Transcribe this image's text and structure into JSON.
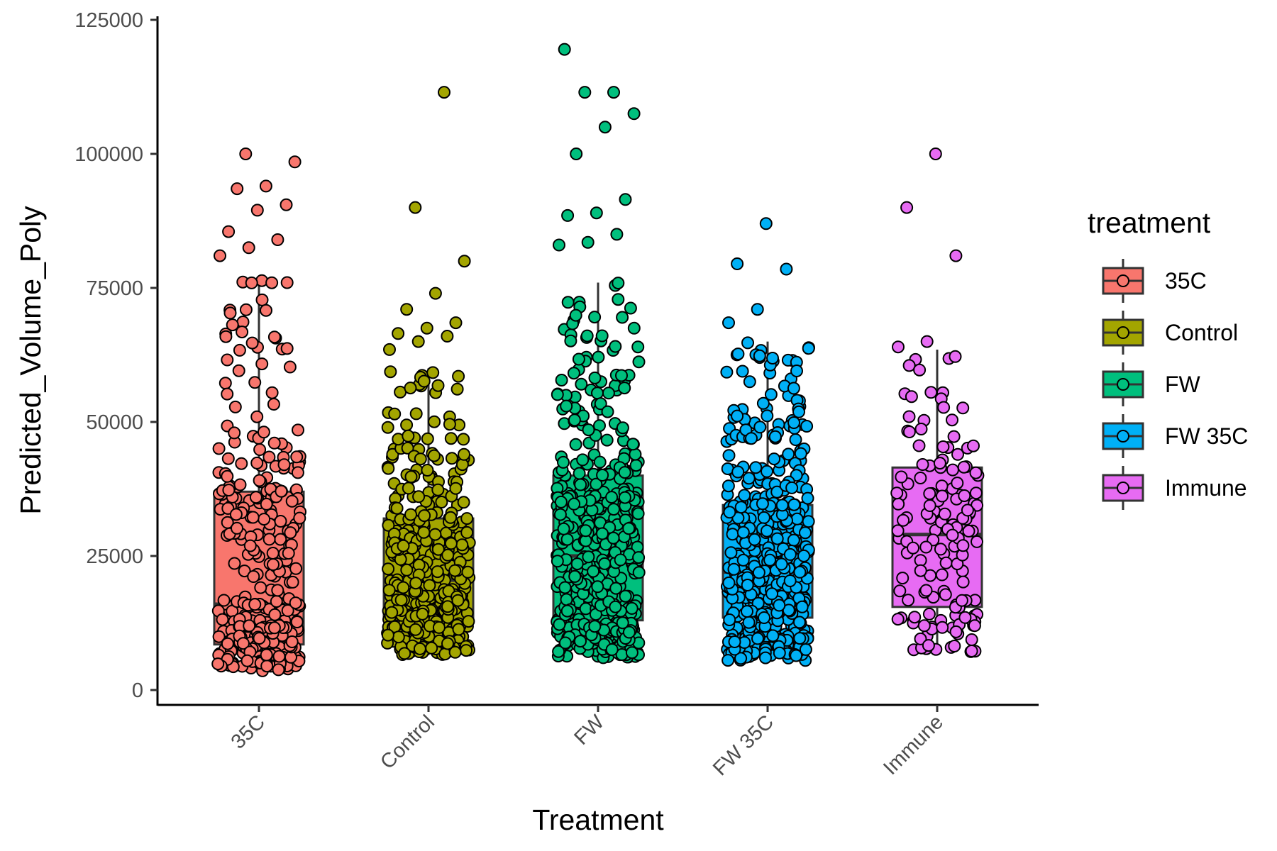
{
  "chart_data": {
    "type": "box",
    "title": "",
    "xlabel": "Treatment",
    "ylabel": "Predicted_Volume_Poly",
    "ylim": [
      -2000,
      127000
    ],
    "y_ticks": [
      "0",
      "25000",
      "50000",
      "75000",
      "100000",
      "125000"
    ],
    "y_tick_values": [
      0,
      25000,
      50000,
      75000,
      100000,
      125000
    ],
    "categories": [
      "35C",
      "Control",
      "FW",
      "FW 35C",
      "Immune"
    ],
    "colors": [
      "#F8766D",
      "#A3A500",
      "#00BF7D",
      "#00B0F6",
      "#E76BF3"
    ],
    "legend": {
      "title": "treatment",
      "placement": "right",
      "entries": [
        "35C",
        "Control",
        "FW",
        "FW 35C",
        "Immune"
      ]
    },
    "grid": false,
    "series": [
      {
        "category": "35C",
        "box": {
          "q1": 8500,
          "median": 16000,
          "q3": 37000,
          "whisker_low": 3500,
          "whisker_high": 77000
        },
        "outliers": [
          81000,
          82500,
          84000,
          85500,
          89500,
          90500,
          93500,
          94000,
          98500,
          100000
        ],
        "n_points": 320,
        "spread": [
          3500,
          77000
        ]
      },
      {
        "category": "Control",
        "box": {
          "q1": 13000,
          "median": 20500,
          "q3": 32000,
          "whisker_low": 6500,
          "whisker_high": 60000
        },
        "outliers": [
          63500,
          65000,
          66000,
          66500,
          67500,
          68500,
          71000,
          74000,
          80000,
          90000,
          111500
        ],
        "n_points": 400,
        "spread": [
          6500,
          60000
        ]
      },
      {
        "category": "FW",
        "box": {
          "q1": 13000,
          "median": 25000,
          "q3": 40000,
          "whisker_low": 6000,
          "whisker_high": 76000
        },
        "outliers": [
          83000,
          83500,
          85000,
          88500,
          89000,
          91500,
          100000,
          105000,
          107500,
          111500,
          111500,
          119500
        ],
        "n_points": 470,
        "spread": [
          6000,
          76000
        ]
      },
      {
        "category": "FW 35C",
        "box": {
          "q1": 13500,
          "median": 22000,
          "q3": 34500,
          "whisker_low": 5500,
          "whisker_high": 65000
        },
        "outliers": [
          68500,
          71000,
          78500,
          79500,
          87000
        ],
        "n_points": 480,
        "spread": [
          5500,
          65000
        ]
      },
      {
        "category": "Immune",
        "box": {
          "q1": 15500,
          "median": 29000,
          "q3": 41500,
          "whisker_low": 7000,
          "whisker_high": 63500
        },
        "outliers": [
          64000,
          65000,
          81000,
          90000,
          100000
        ],
        "n_points": 150,
        "spread": [
          7000,
          63500
        ]
      }
    ]
  }
}
